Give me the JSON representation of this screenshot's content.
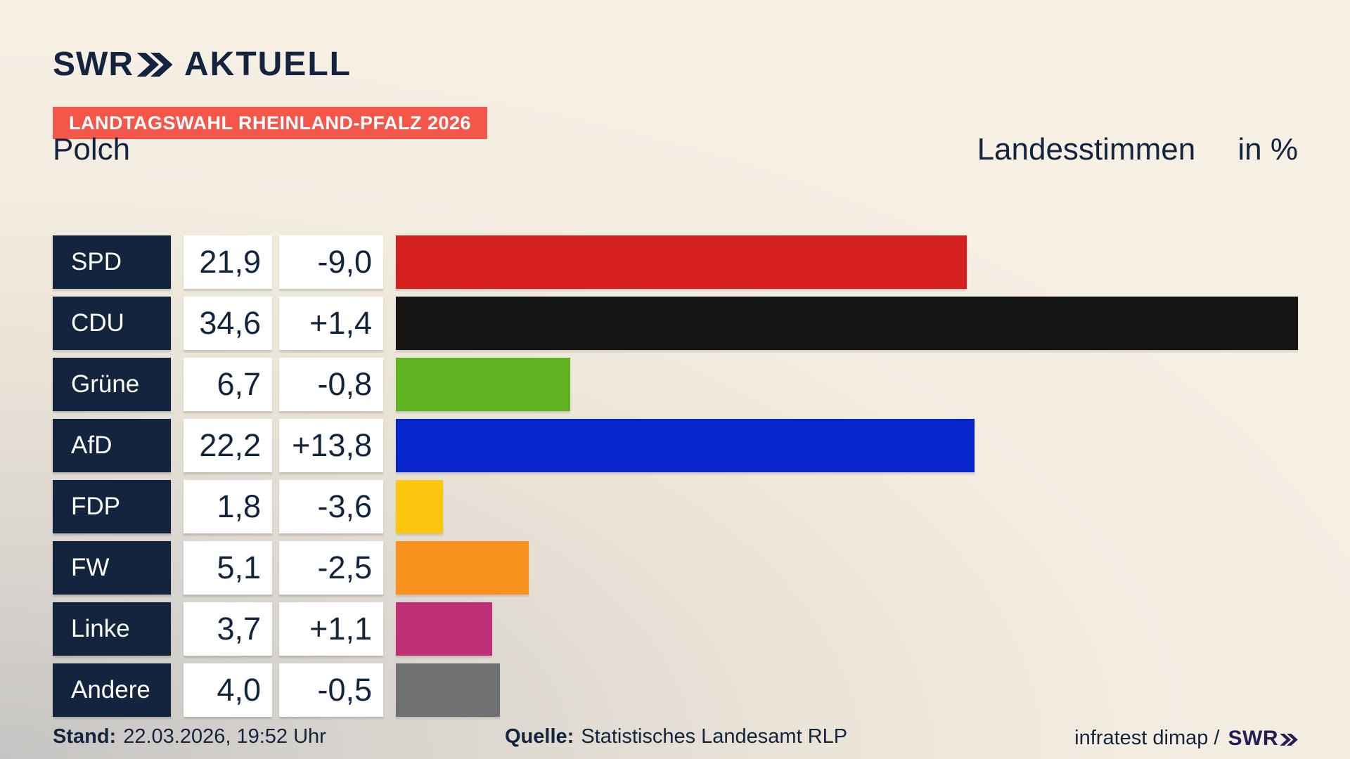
{
  "header": {
    "logo_brand": "SWR",
    "logo_suffix": "AKTUELL",
    "banner": "LANDTAGSWAHL RHEINLAND-PFALZ 2026",
    "title": "Polch",
    "subtitle": "Landesstimmen",
    "unit": "in %"
  },
  "chart_data": {
    "type": "bar",
    "orientation": "horizontal",
    "title": "Landtagswahl Rheinland-Pfalz 2026 – Polch – Landesstimmen in %",
    "categories": [
      "SPD",
      "CDU",
      "Grüne",
      "AfD",
      "FDP",
      "FW",
      "Linke",
      "Andere"
    ],
    "values": [
      21.9,
      34.6,
      6.7,
      22.2,
      1.8,
      5.1,
      3.7,
      4.0
    ],
    "changes": [
      -9.0,
      1.4,
      -0.8,
      13.8,
      -3.6,
      -2.5,
      1.1,
      -0.5
    ],
    "value_labels": [
      "21,9",
      "34,6",
      "6,7",
      "22,2",
      "1,8",
      "5,1",
      "3,7",
      "4,0"
    ],
    "change_labels": [
      "-9,0",
      "+1,4",
      "-0,8",
      "+13,8",
      "-3,6",
      "-2,5",
      "+1,1",
      "-0,5"
    ],
    "bar_colors": [
      "#d6201f",
      "#141413",
      "#5fb220",
      "#0824cb",
      "#fcc60e",
      "#f8911e",
      "#bf3076",
      "#6f7173"
    ],
    "xlim": [
      0,
      34.6
    ],
    "grid": false,
    "legend": false
  },
  "footer": {
    "stand_label": "Stand:",
    "stand_value": "22.03.2026, 19:52 Uhr",
    "quelle_label": "Quelle:",
    "quelle_value": "Statistisches Landesamt RLP",
    "credit_text": "infratest dimap /",
    "credit_logo": "SWR"
  },
  "colors": {
    "navy": "#12243e",
    "banner_red": "#f4564a",
    "cell_background": "#ffffff",
    "credit_logo": "#251d54",
    "background_top": "#f6efe4",
    "background_bottom_left": "#c6c4c2"
  }
}
